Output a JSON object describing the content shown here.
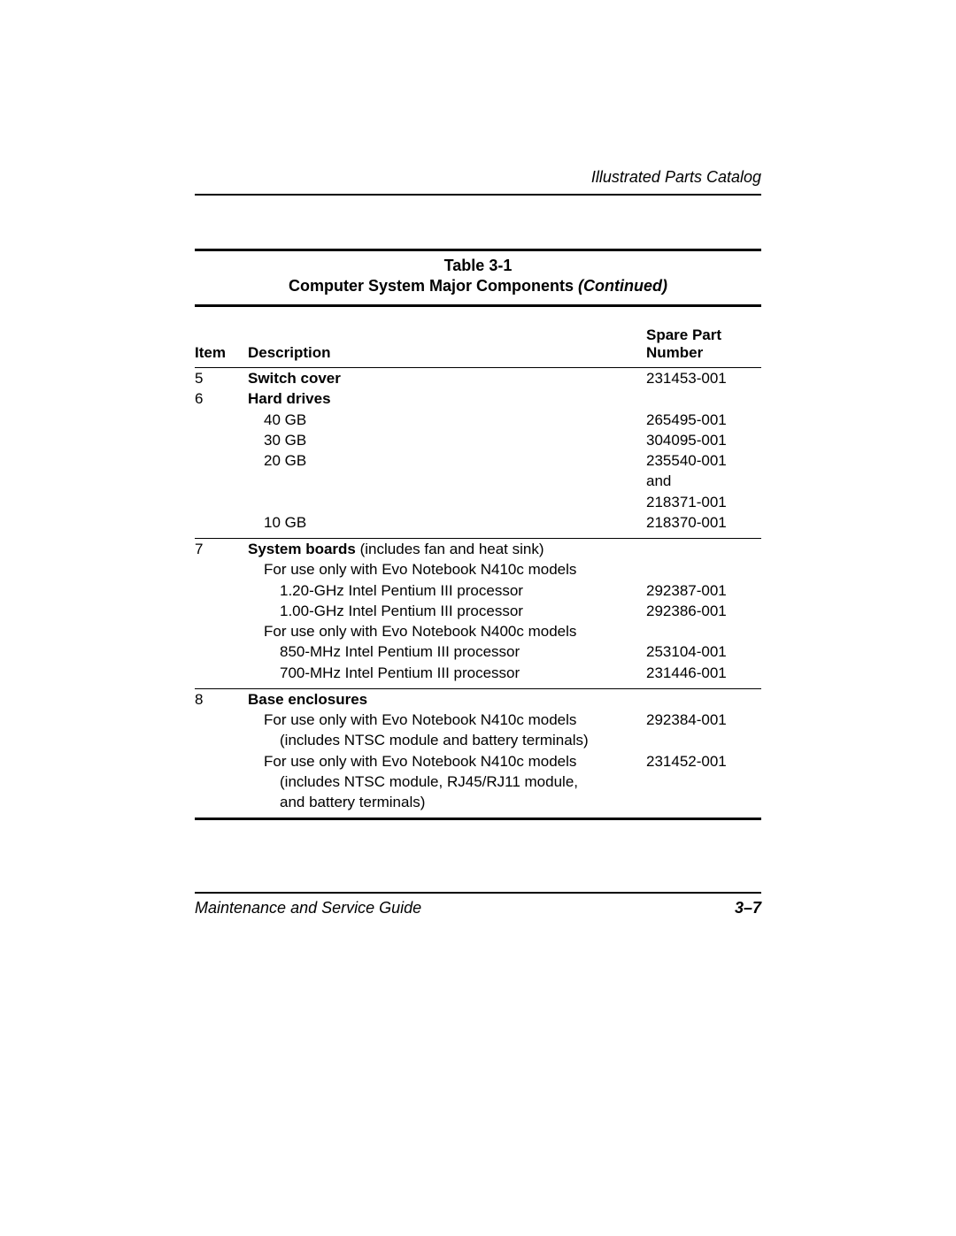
{
  "header": {
    "section": "Illustrated Parts Catalog"
  },
  "table": {
    "caption_line1": "Table 3-1",
    "caption_line2a": "Computer System Major Components ",
    "caption_line2b": "(Continued)",
    "columns": {
      "item": "Item",
      "description": "Description",
      "part_l1": "Spare Part",
      "part_l2": "Number"
    },
    "rows": [
      {
        "item": "5",
        "desc_bold": "Switch cover",
        "part": "231453-001",
        "indent": 0,
        "sep_after": false
      },
      {
        "item": "6",
        "desc_bold": "Hard drives",
        "part": "",
        "indent": 0,
        "sep_after": false
      },
      {
        "item": "",
        "desc": "40 GB",
        "part": "265495-001",
        "indent": 1
      },
      {
        "item": "",
        "desc": "30 GB",
        "part": "304095-001",
        "indent": 1
      },
      {
        "item": "",
        "desc": "20 GB",
        "part": "235540-001",
        "indent": 1
      },
      {
        "item": "",
        "desc": "",
        "part": "and",
        "indent": 1
      },
      {
        "item": "",
        "desc": "",
        "part": "218371-001",
        "indent": 1
      },
      {
        "item": "",
        "desc": "10 GB",
        "part": "218370-001",
        "indent": 1,
        "sep_after": true
      },
      {
        "item": "7",
        "desc_bold": "System boards",
        "desc_after": " (includes fan and heat sink)",
        "part": "",
        "indent": 0
      },
      {
        "item": "",
        "desc": "For use only with Evo Notebook N410c models",
        "part": "",
        "indent": 1
      },
      {
        "item": "",
        "desc": "1.20-GHz Intel Pentium III processor",
        "part": "292387-001",
        "indent": 2
      },
      {
        "item": "",
        "desc": "1.00-GHz Intel Pentium III processor",
        "part": "292386-001",
        "indent": 2
      },
      {
        "item": "",
        "desc": "For use only with Evo Notebook N400c models",
        "part": "",
        "indent": 1
      },
      {
        "item": "",
        "desc": "850-MHz Intel Pentium III processor",
        "part": "253104-001",
        "indent": 2
      },
      {
        "item": "",
        "desc": "700-MHz Intel Pentium III processor",
        "part": "231446-001",
        "indent": 2,
        "sep_after": true
      },
      {
        "item": "8",
        "desc_bold": "Base enclosures",
        "part": "",
        "indent": 0
      },
      {
        "item": "",
        "desc": "For use only with Evo Notebook N410c models",
        "part": "292384-001",
        "indent": 1
      },
      {
        "item": "",
        "desc": "(includes NTSC module and battery terminals)",
        "part": "",
        "indent": 2
      },
      {
        "item": "",
        "desc": "For use only with Evo Notebook N410c models",
        "part": "231452-001",
        "indent": 1
      },
      {
        "item": "",
        "desc": "(includes NTSC module, RJ45/RJ11 module,",
        "part": "",
        "indent": 2
      },
      {
        "item": "",
        "desc": "and battery terminals)",
        "part": "",
        "indent": 2,
        "end_after": true
      }
    ]
  },
  "footer": {
    "left": "Maintenance and Service Guide",
    "right": "3–7"
  }
}
